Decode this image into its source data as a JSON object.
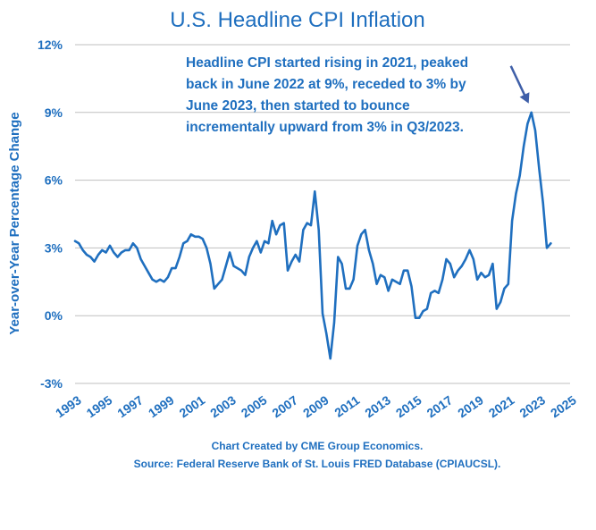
{
  "chart_data": {
    "type": "line",
    "title": "U.S. Headline CPI Inflation",
    "ylabel": "Year-over-Year  Percentage Change",
    "xlabel": "",
    "xlim": [
      1993,
      2025
    ],
    "ylim": [
      -3,
      12
    ],
    "yticks": [
      -3,
      0,
      3,
      6,
      9,
      12
    ],
    "ytick_labels": [
      "-3%",
      "0%",
      "3%",
      "6%",
      "9%",
      "12%"
    ],
    "xticks": [
      1993,
      1995,
      1997,
      1999,
      2001,
      2003,
      2005,
      2007,
      2009,
      2011,
      2013,
      2015,
      2017,
      2019,
      2021,
      2023,
      2025
    ],
    "xtick_labels": [
      "1993",
      "1995",
      "1997",
      "1999",
      "2001",
      "2003",
      "2005",
      "2007",
      "2009",
      "2011",
      "2013",
      "2015",
      "2017",
      "2019",
      "2021",
      "2023",
      "2025"
    ],
    "grid": "horizontal",
    "line_color": "#1f6fbf",
    "annotation": {
      "lines": [
        "Headline CPI started rising in 2021, peaked",
        "back in June 2022 at 9%, receded to 3% by",
        "June 2023, then started to bounce",
        "incrementally upward from 3%  in Q3/2023."
      ],
      "arrow_target": [
        2022.5,
        9.0
      ]
    },
    "source_lines": [
      "Chart Created by CME Group Economics.",
      "Source: Federal Reserve Bank of St. Louis FRED Database (CPIAUCSL)."
    ],
    "series": [
      {
        "x": [
          1993.0,
          1993.25,
          1993.5,
          1993.75,
          1994.0,
          1994.25,
          1994.5,
          1994.75,
          1995.0,
          1995.25,
          1995.5,
          1995.75,
          1996.0,
          1996.25,
          1996.5,
          1996.75,
          1997.0,
          1997.25,
          1997.5,
          1997.75,
          1998.0,
          1998.25,
          1998.5,
          1998.75,
          1999.0,
          1999.25,
          1999.5,
          1999.75,
          2000.0,
          2000.25,
          2000.5,
          2000.75,
          2001.0,
          2001.25,
          2001.5,
          2001.75,
          2002.0,
          2002.25,
          2002.5,
          2002.75,
          2003.0,
          2003.25,
          2003.5,
          2003.75,
          2004.0,
          2004.25,
          2004.5,
          2004.75,
          2005.0,
          2005.25,
          2005.5,
          2005.75,
          2006.0,
          2006.25,
          2006.5,
          2006.75,
          2007.0,
          2007.25,
          2007.5,
          2007.75,
          2008.0,
          2008.25,
          2008.5,
          2008.75,
          2009.0,
          2009.25,
          2009.5,
          2009.75,
          2010.0,
          2010.25,
          2010.5,
          2010.75,
          2011.0,
          2011.25,
          2011.5,
          2011.75,
          2012.0,
          2012.25,
          2012.5,
          2012.75,
          2013.0,
          2013.25,
          2013.5,
          2013.75,
          2014.0,
          2014.25,
          2014.5,
          2014.75,
          2015.0,
          2015.25,
          2015.5,
          2015.75,
          2016.0,
          2016.25,
          2016.5,
          2016.75,
          2017.0,
          2017.25,
          2017.5,
          2017.75,
          2018.0,
          2018.25,
          2018.5,
          2018.75,
          2019.0,
          2019.25,
          2019.5,
          2019.75,
          2020.0,
          2020.25,
          2020.5,
          2020.75,
          2021.0,
          2021.25,
          2021.5,
          2021.75,
          2022.0,
          2022.25,
          2022.5,
          2022.75,
          2023.0,
          2023.25,
          2023.5,
          2023.75
        ],
        "values": [
          3.3,
          3.2,
          2.9,
          2.7,
          2.6,
          2.4,
          2.7,
          2.9,
          2.8,
          3.1,
          2.8,
          2.6,
          2.8,
          2.9,
          2.9,
          3.2,
          3.0,
          2.5,
          2.2,
          1.9,
          1.6,
          1.5,
          1.6,
          1.5,
          1.7,
          2.1,
          2.1,
          2.6,
          3.2,
          3.3,
          3.6,
          3.5,
          3.5,
          3.4,
          3.0,
          2.3,
          1.2,
          1.4,
          1.6,
          2.2,
          2.8,
          2.2,
          2.1,
          2.0,
          1.8,
          2.6,
          3.0,
          3.3,
          2.8,
          3.3,
          3.2,
          4.2,
          3.6,
          4.0,
          4.1,
          2.0,
          2.4,
          2.7,
          2.4,
          3.8,
          4.1,
          4.0,
          5.5,
          3.8,
          0.1,
          -0.8,
          -1.9,
          -0.3,
          2.6,
          2.3,
          1.2,
          1.2,
          1.6,
          3.1,
          3.6,
          3.8,
          2.9,
          2.3,
          1.4,
          1.8,
          1.7,
          1.1,
          1.6,
          1.5,
          1.4,
          2.0,
          2.0,
          1.3,
          -0.1,
          -0.1,
          0.2,
          0.3,
          1.0,
          1.1,
          1.0,
          1.6,
          2.5,
          2.3,
          1.7,
          2.0,
          2.2,
          2.5,
          2.9,
          2.5,
          1.6,
          1.9,
          1.7,
          1.8,
          2.3,
          0.3,
          0.6,
          1.2,
          1.4,
          4.2,
          5.4,
          6.2,
          7.5,
          8.5,
          9.0,
          8.2,
          6.5,
          5.0,
          3.0,
          3.2
        ]
      }
    ]
  }
}
